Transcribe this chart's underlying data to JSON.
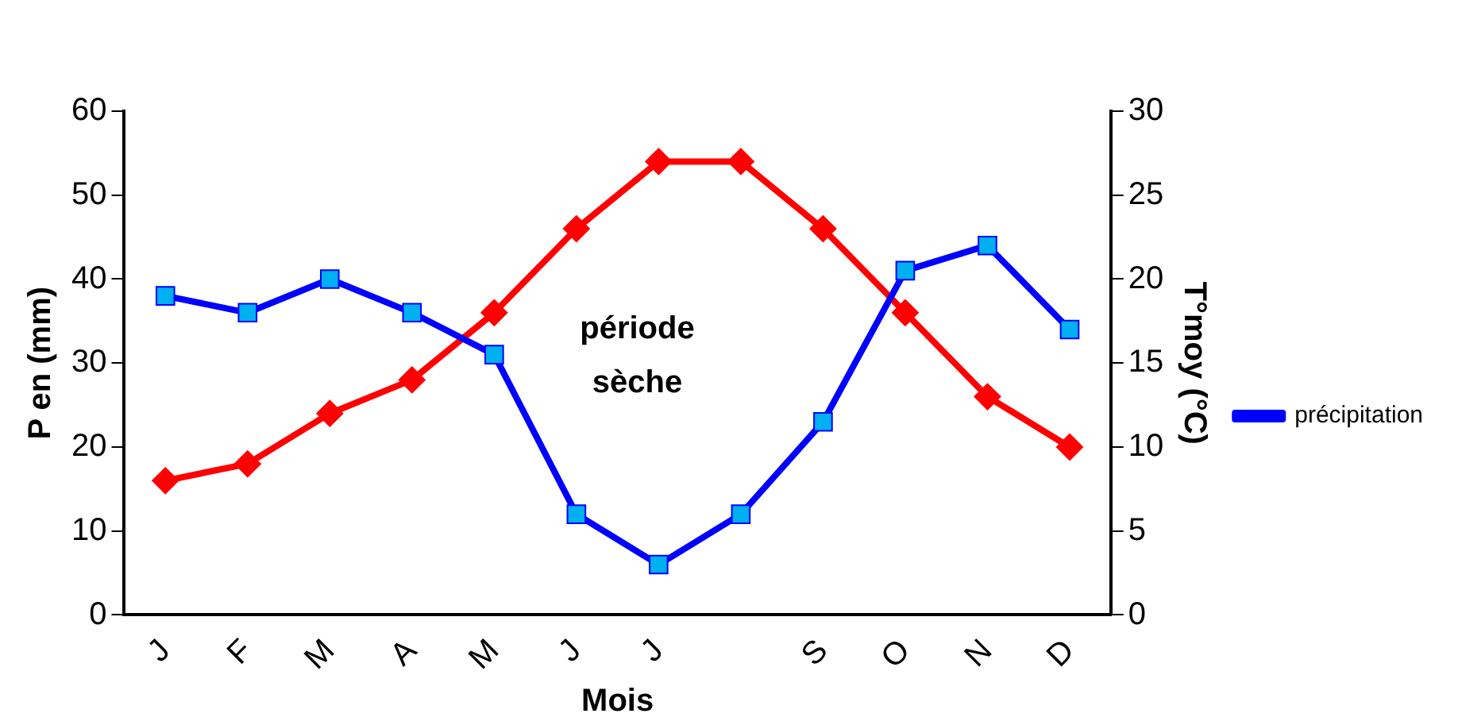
{
  "chart_data": {
    "type": "line",
    "xlabel": "Mois",
    "ylabel": "P en (mm)",
    "y2label": "T°moy (°C)",
    "categories": [
      "J",
      "F",
      "M",
      "A",
      "M",
      "J",
      "J",
      null,
      "S",
      "O",
      "N",
      "D"
    ],
    "series": [
      {
        "name": "précipitation",
        "color": "#0000ff",
        "marker": "square",
        "values": [
          38,
          36,
          40,
          36,
          31,
          12,
          6,
          12,
          23,
          41,
          44,
          34
        ]
      },
      {
        "color": "#ff0000",
        "marker": "diamond",
        "axis": "y2",
        "values": [
          8,
          9,
          12,
          14,
          18,
          23,
          27,
          27,
          23,
          18,
          13,
          10
        ]
      }
    ],
    "ylim": [
      0,
      60
    ],
    "yticks": [
      0,
      10,
      20,
      30,
      40,
      50,
      60
    ],
    "y2lim": [
      0,
      30
    ],
    "y2ticks": [
      0,
      5,
      10,
      15,
      20,
      25,
      30
    ],
    "grid": false,
    "legend": "right",
    "annotations": [
      "période sèche"
    ]
  }
}
